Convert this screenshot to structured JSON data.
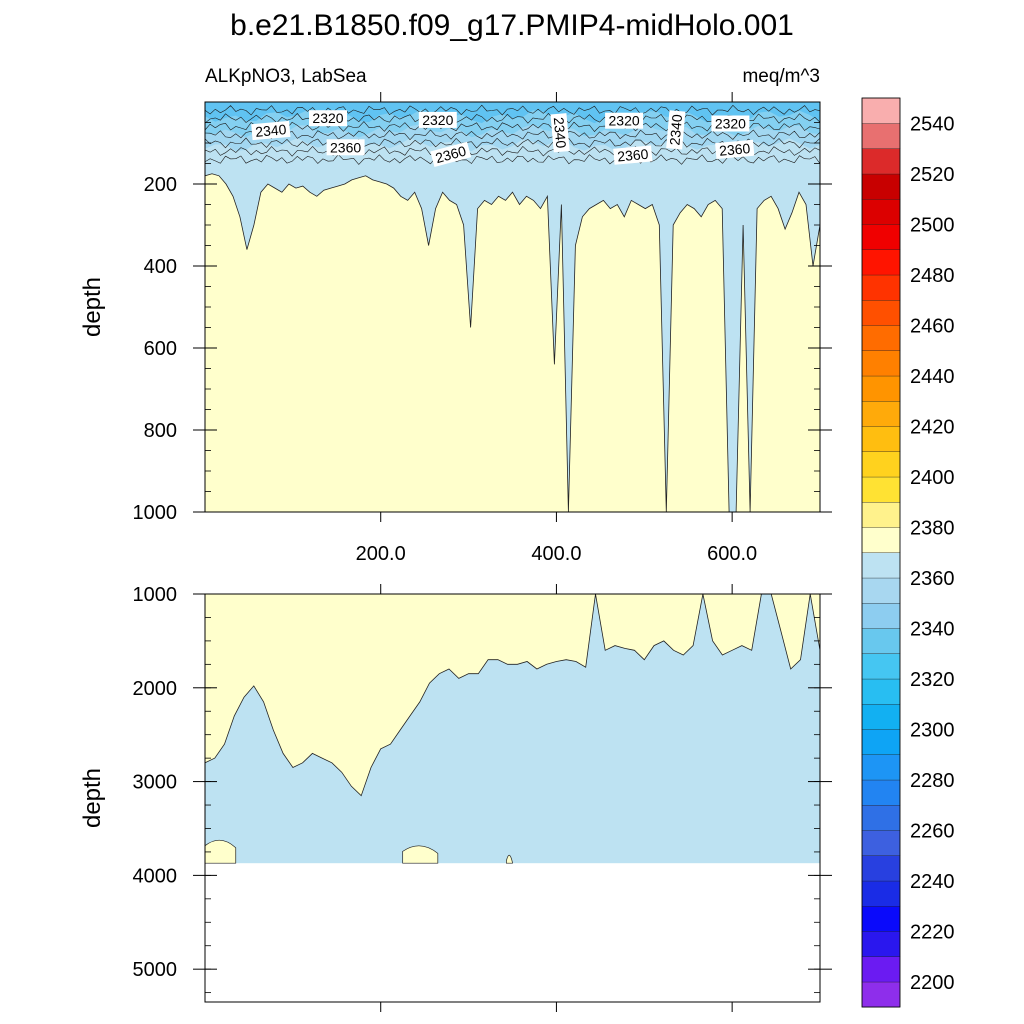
{
  "chart_data": {
    "type": "contour",
    "title": "b.e21.B1850.f09_g17.PMIP4-midHolo.001",
    "subtitle_left": "ALKpNO3, LabSea",
    "subtitle_right": "meq/m^3",
    "xlabel": "",
    "ylabel": "depth",
    "xlim": [
      0,
      700
    ],
    "x_ticks": [
      200,
      400,
      600
    ],
    "x_tick_labels": [
      "200.0",
      "400.0",
      "600.0"
    ],
    "panels": [
      {
        "name": "upper",
        "ylim": [
          0,
          1000
        ],
        "y_ticks": [
          200,
          400,
          600,
          800,
          1000
        ],
        "y_tick_labels": [
          "200",
          "400",
          "600",
          "800",
          "1000"
        ],
        "boundary_2360_depth": [
          180,
          175,
          180,
          200,
          230,
          280,
          360,
          300,
          220,
          200,
          210,
          220,
          200,
          210,
          205,
          220,
          230,
          215,
          210,
          205,
          200,
          190,
          185,
          180,
          190,
          195,
          200,
          210,
          230,
          240,
          220,
          260,
          350,
          260,
          220,
          240,
          250,
          300,
          550,
          260,
          240,
          250,
          230,
          240,
          220,
          250,
          230,
          240,
          260,
          230,
          640,
          250,
          1000,
          350,
          280,
          260,
          250,
          240,
          260,
          250,
          280,
          240,
          250,
          260,
          250,
          300,
          1000,
          300,
          270,
          250,
          260,
          280,
          250,
          240,
          260,
          1000,
          1000,
          300,
          1000,
          260,
          240,
          230,
          260,
          310,
          270,
          220,
          250,
          400,
          300
        ],
        "contour_labels": [
          {
            "text": "2340",
            "x": 75,
            "depth": 72,
            "angle": -5
          },
          {
            "text": "2320",
            "x": 140,
            "depth": 42,
            "angle": 0
          },
          {
            "text": "2360",
            "x": 160,
            "depth": 113,
            "angle": 0
          },
          {
            "text": "2320",
            "x": 265,
            "depth": 46,
            "angle": 0
          },
          {
            "text": "2360",
            "x": 280,
            "depth": 130,
            "angle": -15
          },
          {
            "text": "2340",
            "x": 403,
            "depth": 75,
            "angle": 85
          },
          {
            "text": "2320",
            "x": 477,
            "depth": 48,
            "angle": 0
          },
          {
            "text": "2360",
            "x": 487,
            "depth": 132,
            "angle": -5
          },
          {
            "text": "2340",
            "x": 537,
            "depth": 68,
            "angle": -85
          },
          {
            "text": "2320",
            "x": 598,
            "depth": 55,
            "angle": 0
          },
          {
            "text": "2360",
            "x": 603,
            "depth": 118,
            "angle": -5
          }
        ],
        "thin_contours_near_surface": [
          20,
          40,
          60,
          80,
          100,
          120,
          140
        ]
      },
      {
        "name": "lower",
        "ylim": [
          1000,
          5350
        ],
        "y_ticks": [
          1000,
          2000,
          3000,
          4000,
          5000
        ],
        "y_tick_labels": [
          "1000",
          "2000",
          "3000",
          "4000",
          "5000"
        ],
        "bottom_depth": 3870,
        "boundary_2380_depth": [
          2800,
          2750,
          2600,
          2300,
          2100,
          1980,
          2150,
          2450,
          2700,
          2850,
          2800,
          2700,
          2750,
          2800,
          2900,
          3050,
          3150,
          2850,
          2650,
          2600,
          2450,
          2300,
          2150,
          1950,
          1850,
          1800,
          1900,
          1850,
          1850,
          1700,
          1700,
          1750,
          1750,
          1720,
          1800,
          1750,
          1720,
          1700,
          1720,
          1780,
          1000,
          1600,
          1550,
          1580,
          1600,
          1700,
          1550,
          1500,
          1600,
          1650,
          1550,
          1000,
          1500,
          1650,
          1600,
          1550,
          1600,
          1000,
          1000,
          1400,
          1800,
          1700,
          1000,
          1600
        ],
        "deep_pockets": [
          {
            "x_start": 0,
            "x_end": 35,
            "top_depth": 3620
          },
          {
            "x_start": 225,
            "x_end": 265,
            "top_depth": 3680
          },
          {
            "x_start": 343,
            "x_end": 350,
            "top_depth": 3780
          }
        ]
      }
    ],
    "colorbar": {
      "levels": [
        2200,
        2210,
        2220,
        2230,
        2240,
        2250,
        2260,
        2270,
        2280,
        2290,
        2300,
        2310,
        2320,
        2330,
        2340,
        2350,
        2360,
        2370,
        2380,
        2390,
        2400,
        2410,
        2420,
        2430,
        2440,
        2450,
        2460,
        2470,
        2480,
        2490,
        2500,
        2510,
        2520,
        2530,
        2540,
        2550
      ],
      "labeled_levels": [
        "2200",
        "2220",
        "2240",
        "2260",
        "2280",
        "2300",
        "2320",
        "2340",
        "2360",
        "2380",
        "2400",
        "2420",
        "2440",
        "2460",
        "2480",
        "2500",
        "2520",
        "2540"
      ],
      "colors": [
        "#8E2EEB",
        "#6B1BF2",
        "#2A17EE",
        "#0A0AFB",
        "#1A2CE6",
        "#2840E0",
        "#3D60E0",
        "#2F70E6",
        "#2284F2",
        "#1D95F5",
        "#0EA4F5",
        "#12B0F2",
        "#28BEF2",
        "#45C6F2",
        "#68C8EE",
        "#8DCDF0",
        "#A8D7F0",
        "#BDE2F2",
        "#FFFFCC",
        "#FFF28C",
        "#FFE233",
        "#FFD21E",
        "#FFBE10",
        "#FFAA0A",
        "#FF9400",
        "#FF8000",
        "#FF6C00",
        "#FF5000",
        "#FF3300",
        "#FF1400",
        "#F00000",
        "#DC0000",
        "#C80000",
        "#DC2A2A",
        "#E87070",
        "#F9AEAE"
      ]
    },
    "fill_colors": {
      "deep_fill": "#BDE2F2",
      "below_2380": "#FFFFCC",
      "surface_gradient": [
        "#0EA4F5",
        "#45C6F2",
        "#8DCDF0",
        "#BDE2F2"
      ]
    }
  }
}
